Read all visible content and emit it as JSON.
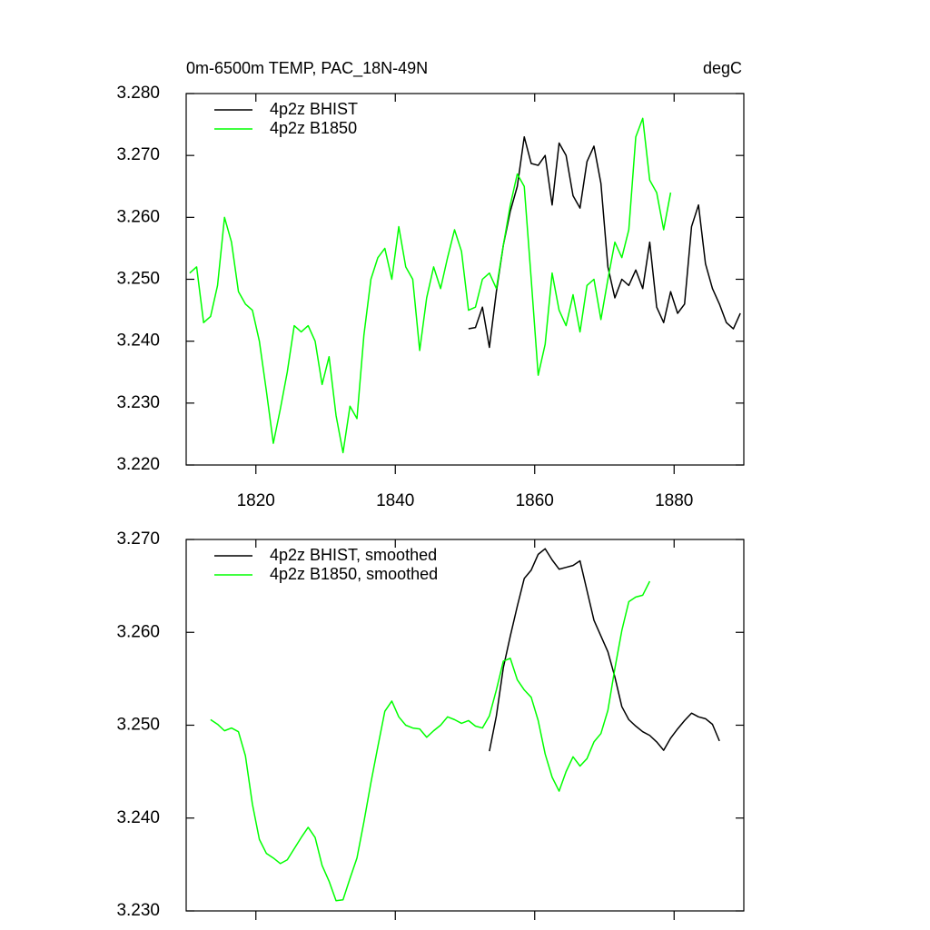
{
  "chart_data": [
    {
      "type": "line",
      "title": "0m-6500m TEMP, PAC_18N-49N",
      "units": "degC",
      "xlim": [
        1810,
        1890
      ],
      "xticks": [
        1820,
        1840,
        1860,
        1880
      ],
      "ylim": [
        3.22,
        3.28
      ],
      "yticks": [
        {
          "value": 3.22,
          "label": "3.220"
        },
        {
          "value": 3.23,
          "label": "3.230"
        },
        {
          "value": 3.24,
          "label": "3.240"
        },
        {
          "value": 3.25,
          "label": "3.250"
        },
        {
          "value": 3.26,
          "label": "3.260"
        },
        {
          "value": 3.27,
          "label": "3.270"
        },
        {
          "value": 3.28,
          "label": "3.280"
        }
      ],
      "legend": "upper left",
      "series": [
        {
          "name": "4p2z BHIST",
          "color": "#000000",
          "x": [
            1850.5,
            1851.5,
            1852.5,
            1853.5,
            1854.5,
            1855.5,
            1856.5,
            1857.5,
            1858.5,
            1859.5,
            1860.5,
            1861.5,
            1862.5,
            1863.5,
            1864.5,
            1865.5,
            1866.5,
            1867.5,
            1868.5,
            1869.5,
            1870.5,
            1871.5,
            1872.5,
            1873.5,
            1874.5,
            1875.5,
            1876.5,
            1877.5,
            1878.5,
            1879.5,
            1880.5,
            1881.5,
            1882.5,
            1883.5,
            1884.5,
            1885.5,
            1886.5,
            1887.5,
            1888.5,
            1889.5
          ],
          "values": [
            3.242,
            3.2422,
            3.2455,
            3.239,
            3.248,
            3.2555,
            3.261,
            3.265,
            3.273,
            3.2687,
            3.2684,
            3.27,
            3.262,
            3.272,
            3.27,
            3.2635,
            3.2615,
            3.269,
            3.2715,
            3.2655,
            3.252,
            3.247,
            3.25,
            3.249,
            3.2515,
            3.2485,
            3.256,
            3.2455,
            3.243,
            3.248,
            3.2445,
            3.246,
            3.2585,
            3.262,
            3.2525,
            3.2485,
            3.246,
            3.243,
            3.242,
            3.2445
          ]
        },
        {
          "name": "4p2z B1850",
          "color": "#00ff00",
          "x": [
            1810.5,
            1811.5,
            1812.5,
            1813.5,
            1814.5,
            1815.5,
            1816.5,
            1817.5,
            1818.5,
            1819.5,
            1820.5,
            1821.5,
            1822.5,
            1823.5,
            1824.5,
            1825.5,
            1826.5,
            1827.5,
            1828.5,
            1829.5,
            1830.5,
            1831.5,
            1832.5,
            1833.5,
            1834.5,
            1835.5,
            1836.5,
            1837.5,
            1838.5,
            1839.5,
            1840.5,
            1841.5,
            1842.5,
            1843.5,
            1844.5,
            1845.5,
            1846.5,
            1847.5,
            1848.5,
            1849.5,
            1850.5,
            1851.5,
            1852.5,
            1853.5,
            1854.5,
            1855.5,
            1856.5,
            1857.5,
            1858.5,
            1859.5,
            1860.5,
            1861.5,
            1862.5,
            1863.5,
            1864.5,
            1865.5,
            1866.5,
            1867.5,
            1868.5,
            1869.5,
            1870.5,
            1871.5,
            1872.5,
            1873.5,
            1874.5,
            1875.5,
            1876.5,
            1877.5,
            1878.5,
            1879.5
          ],
          "values": [
            3.251,
            3.252,
            3.243,
            3.244,
            3.249,
            3.26,
            3.256,
            3.248,
            3.246,
            3.245,
            3.24,
            3.232,
            3.2235,
            3.229,
            3.235,
            3.2425,
            3.2415,
            3.2425,
            3.24,
            3.233,
            3.2375,
            3.228,
            3.222,
            3.2295,
            3.2275,
            3.241,
            3.25,
            3.2535,
            3.255,
            3.25,
            3.2585,
            3.252,
            3.25,
            3.2385,
            3.247,
            3.252,
            3.2485,
            3.2535,
            3.258,
            3.2545,
            3.245,
            3.2455,
            3.25,
            3.251,
            3.2485,
            3.2555,
            3.262,
            3.267,
            3.265,
            3.25,
            3.2345,
            3.2395,
            3.251,
            3.245,
            3.2425,
            3.2475,
            3.2415,
            3.249,
            3.25,
            3.2435,
            3.25,
            3.256,
            3.2535,
            3.258,
            3.273,
            3.276,
            3.266,
            3.264,
            3.258,
            3.264
          ]
        }
      ]
    },
    {
      "type": "line",
      "xlim": [
        1810,
        1890
      ],
      "xticks": [
        1820,
        1840,
        1860,
        1880
      ],
      "ylim": [
        3.23,
        3.27
      ],
      "yticks": [
        {
          "value": 3.23,
          "label": "3.230"
        },
        {
          "value": 3.24,
          "label": "3.240"
        },
        {
          "value": 3.25,
          "label": "3.250"
        },
        {
          "value": 3.26,
          "label": "3.260"
        },
        {
          "value": 3.27,
          "label": "3.270"
        }
      ],
      "legend": "upper left",
      "series": [
        {
          "name": "4p2z BHIST, smoothed",
          "color": "#000000",
          "x": [
            1853.5,
            1854.5,
            1855.5,
            1856.5,
            1857.5,
            1858.5,
            1859.5,
            1860.5,
            1861.5,
            1862.5,
            1863.5,
            1864.5,
            1865.5,
            1866.5,
            1867.5,
            1868.5,
            1869.5,
            1870.5,
            1871.5,
            1872.5,
            1873.5,
            1874.5,
            1875.5,
            1876.5,
            1877.5,
            1878.5,
            1879.5,
            1880.5,
            1881.5,
            1882.5,
            1883.5,
            1884.5,
            1885.5,
            1886.5
          ],
          "values": [
            3.2472,
            3.251,
            3.2562,
            3.2596,
            3.2628,
            3.2658,
            3.2667,
            3.2684,
            3.269,
            3.2678,
            3.2668,
            3.267,
            3.2672,
            3.2677,
            3.2645,
            3.2613,
            3.2596,
            3.2579,
            3.2552,
            3.252,
            3.2506,
            3.2499,
            3.2493,
            3.2489,
            3.2482,
            3.2473,
            3.2486,
            3.2496,
            3.2505,
            3.2513,
            3.2509,
            3.2507,
            3.2501,
            3.2483
          ]
        },
        {
          "name": "4p2z B1850, smoothed",
          "color": "#00ff00",
          "x": [
            1813.5,
            1814.5,
            1815.5,
            1816.5,
            1817.5,
            1818.5,
            1819.5,
            1820.5,
            1821.5,
            1822.5,
            1823.5,
            1824.5,
            1825.5,
            1826.5,
            1827.5,
            1828.5,
            1829.5,
            1830.5,
            1831.5,
            1832.5,
            1833.5,
            1834.5,
            1835.5,
            1836.5,
            1837.5,
            1838.5,
            1839.5,
            1840.5,
            1841.5,
            1842.5,
            1843.5,
            1844.5,
            1845.5,
            1846.5,
            1847.5,
            1848.5,
            1849.5,
            1850.5,
            1851.5,
            1852.5,
            1853.5,
            1854.5,
            1855.5,
            1856.5,
            1857.5,
            1858.5,
            1859.5,
            1860.5,
            1861.5,
            1862.5,
            1863.5,
            1864.5,
            1865.5,
            1866.5,
            1867.5,
            1868.5,
            1869.5,
            1870.5,
            1871.5,
            1872.5,
            1873.5,
            1874.5,
            1875.5,
            1876.5
          ],
          "values": [
            3.2506,
            3.2501,
            3.2494,
            3.2497,
            3.2493,
            3.2467,
            3.2415,
            3.2377,
            3.2362,
            3.2357,
            3.2351,
            3.2355,
            3.2367,
            3.2379,
            3.239,
            3.2379,
            3.2349,
            3.2332,
            3.2311,
            3.2312,
            3.2335,
            3.2357,
            3.2396,
            3.2438,
            3.2477,
            3.2515,
            3.2526,
            3.2509,
            3.25,
            3.2497,
            3.2496,
            3.2487,
            3.2494,
            3.25,
            3.2509,
            3.2506,
            3.2502,
            3.2505,
            3.2499,
            3.2497,
            3.251,
            3.2538,
            3.2569,
            3.2572,
            3.2549,
            3.2538,
            3.253,
            3.2505,
            3.2469,
            3.2444,
            3.2429,
            3.245,
            3.2466,
            3.2456,
            3.2464,
            3.2482,
            3.2491,
            3.2516,
            3.2561,
            3.2602,
            3.2633,
            3.2638,
            3.264,
            3.2655
          ]
        }
      ]
    }
  ]
}
